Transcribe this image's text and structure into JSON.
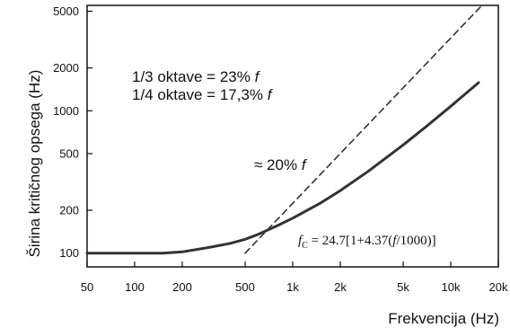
{
  "chart_data": {
    "type": "line",
    "xlabel": "Frekvencija (Hz)",
    "ylabel": "Širina kritičnog opsega (Hz)",
    "x_scale": "log",
    "y_scale": "log",
    "xlim": [
      50,
      20000
    ],
    "ylim": [
      80,
      5500
    ],
    "x_ticks": [
      {
        "value": 50,
        "label": "50"
      },
      {
        "value": 100,
        "label": "100"
      },
      {
        "value": 200,
        "label": "200"
      },
      {
        "value": 500,
        "label": "500"
      },
      {
        "value": 1000,
        "label": "1k"
      },
      {
        "value": 2000,
        "label": "2k"
      },
      {
        "value": 5000,
        "label": "5k"
      },
      {
        "value": 10000,
        "label": "10k"
      },
      {
        "value": 20000,
        "label": "20k"
      }
    ],
    "y_ticks": [
      {
        "value": 100,
        "label": "100"
      },
      {
        "value": 200,
        "label": "200"
      },
      {
        "value": 500,
        "label": "500"
      },
      {
        "value": 1000,
        "label": "1000"
      },
      {
        "value": 2000,
        "label": "2000"
      },
      {
        "value": 5000,
        "label": "5000"
      }
    ],
    "grid": false,
    "series": [
      {
        "style": "solid",
        "color": "#333333",
        "x": [
          50,
          100,
          150,
          200,
          300,
          400,
          500,
          600,
          800,
          1000,
          1500,
          2000,
          3000,
          5000,
          7000,
          10000,
          15000
        ],
        "y": [
          100,
          100,
          100,
          102,
          110,
          117,
          125,
          135,
          156,
          176,
          225,
          275,
          375,
          575,
          775,
          1075,
          1575
        ]
      },
      {
        "style": "dashed",
        "color": "#333333",
        "x": [
          500,
          15500
        ],
        "y": [
          100,
          5400
        ]
      }
    ],
    "annotations": {
      "line1": "1/3 oktave = 23% ",
      "line1_var": "f",
      "line2": "1/4 oktave = 17,3% ",
      "line2_var": "f",
      "approx": "≈ 20% ",
      "approx_var": "f",
      "formula_lhs": "f",
      "formula_sub": "C",
      "formula_mid": " = 24.7[1+4.37(",
      "formula_var": "f",
      "formula_end": "/1000)]"
    }
  }
}
